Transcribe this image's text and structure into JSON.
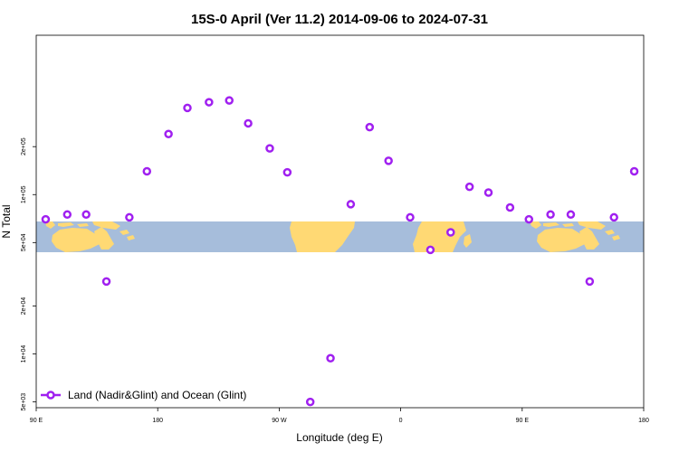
{
  "chart_data": {
    "type": "scatter",
    "title": "15S-0 April (Ver 11.2)   2014-09-06 to 2024-07-31",
    "xlabel": "Longitude (deg E)",
    "ylabel": "N Total",
    "x_axis": {
      "domain": "longitude, wrapping eastward from 90 E through 180 to 180",
      "range_deg_eastward_from_90E": [
        0,
        450
      ],
      "ticks": [
        {
          "offset": 0,
          "label": "90 E"
        },
        {
          "offset": 90,
          "label": "180"
        },
        {
          "offset": 180,
          "label": "90 W"
        },
        {
          "offset": 270,
          "label": "0"
        },
        {
          "offset": 360,
          "label": "90 E"
        },
        {
          "offset": 450,
          "label": "180"
        }
      ]
    },
    "y_axis": {
      "scale": "log",
      "range": [
        4600,
        1000000
      ],
      "ticks": [
        {
          "value": 5000,
          "label": "5e+03"
        },
        {
          "value": 10000,
          "label": "1e+04"
        },
        {
          "value": 20000,
          "label": "2e+04"
        },
        {
          "value": 50000,
          "label": "5e+04"
        },
        {
          "value": 100000,
          "label": "1e+05"
        },
        {
          "value": 200000,
          "label": "2e+05"
        }
      ]
    },
    "map_strip": {
      "lat_band": "15S",
      "ocean_color": "#a6bddb",
      "land_color": "#ffd974"
    },
    "legend": {
      "position": "bottom-left",
      "label": "Land (Nadir&Glint) and Ocean (Glint)"
    },
    "marker_color": "#a020f0",
    "series": [
      {
        "name": "Land (Nadir&Glint) and Ocean (Glint)",
        "points": [
          {
            "x": 7,
            "y": 70000
          },
          {
            "x": 23,
            "y": 75000
          },
          {
            "x": 37,
            "y": 75000
          },
          {
            "x": 52,
            "y": 28500
          },
          {
            "x": 69,
            "y": 72000
          },
          {
            "x": 82,
            "y": 140000
          },
          {
            "x": 98,
            "y": 240000
          },
          {
            "x": 112,
            "y": 350000
          },
          {
            "x": 128,
            "y": 380000
          },
          {
            "x": 143,
            "y": 390000
          },
          {
            "x": 157,
            "y": 280000
          },
          {
            "x": 173,
            "y": 195000
          },
          {
            "x": 186,
            "y": 138000
          },
          {
            "x": 203,
            "y": 5000
          },
          {
            "x": 218,
            "y": 9400
          },
          {
            "x": 233,
            "y": 87000
          },
          {
            "x": 247,
            "y": 265000
          },
          {
            "x": 261,
            "y": 163000
          },
          {
            "x": 277,
            "y": 72000
          },
          {
            "x": 292,
            "y": 45000
          },
          {
            "x": 307,
            "y": 58000
          },
          {
            "x": 321,
            "y": 112000
          },
          {
            "x": 335,
            "y": 103000
          },
          {
            "x": 351,
            "y": 83000
          },
          {
            "x": 365,
            "y": 70000
          },
          {
            "x": 381,
            "y": 75000
          },
          {
            "x": 396,
            "y": 75000
          },
          {
            "x": 410,
            "y": 28500
          },
          {
            "x": 428,
            "y": 72000
          },
          {
            "x": 443,
            "y": 140000
          }
        ]
      }
    ]
  }
}
